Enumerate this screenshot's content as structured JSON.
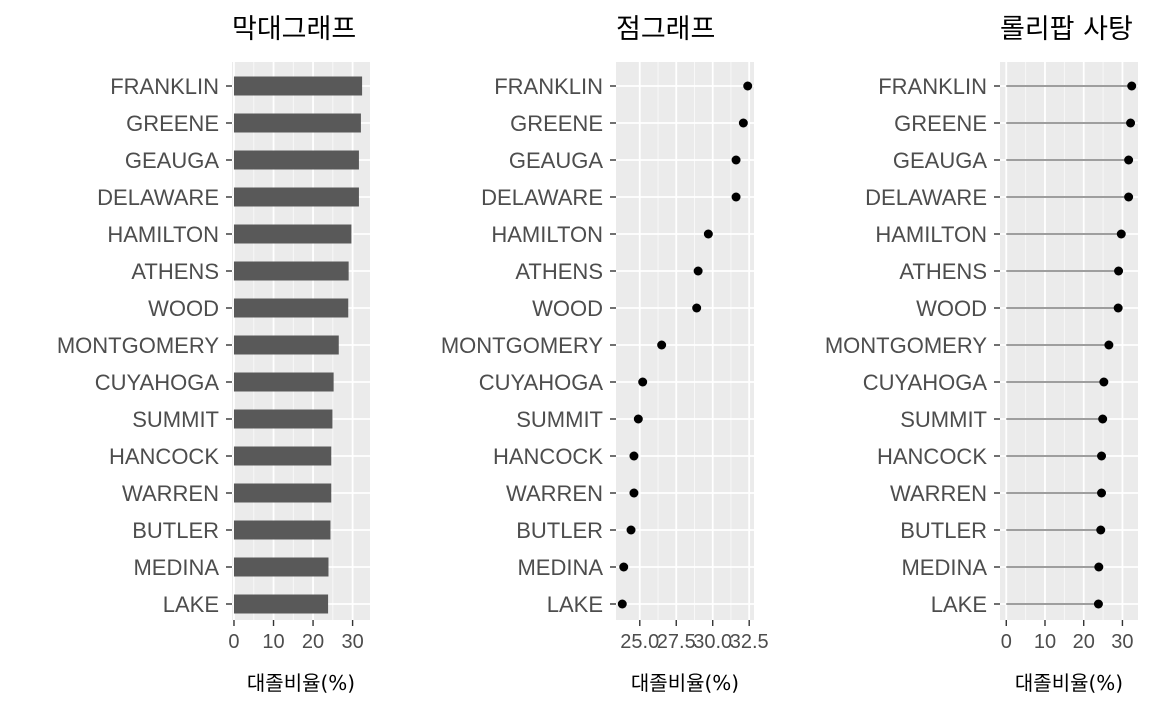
{
  "chart_data": {
    "categories": [
      "FRANKLIN",
      "GREENE",
      "GEAUGA",
      "DELAWARE",
      "HAMILTON",
      "ATHENS",
      "WOOD",
      "MONTGOMERY",
      "CUYAHOGA",
      "SUMMIT",
      "HANCOCK",
      "WARREN",
      "BUTLER",
      "MEDINA",
      "LAKE"
    ],
    "values": [
      32.4,
      32.1,
      31.6,
      31.6,
      29.7,
      29.0,
      28.9,
      26.5,
      25.2,
      24.9,
      24.6,
      24.6,
      24.4,
      23.9,
      23.8
    ],
    "xlabel": "대졸비율(%)",
    "panels": [
      {
        "type": "bar",
        "title": "막대그래프",
        "xlim": [
          -0.5,
          34.4
        ],
        "ticks": [
          0,
          10,
          20,
          30
        ],
        "tick_labels": [
          "0",
          "10",
          "20",
          "30"
        ]
      },
      {
        "type": "scatter",
        "title": "점그래프",
        "xlim": [
          23.37,
          32.83
        ],
        "ticks": [
          25.0,
          27.5,
          30.0,
          32.5
        ],
        "tick_labels": [
          "25.0",
          "27.5",
          "30.0",
          "32.5"
        ]
      },
      {
        "type": "lollipop",
        "title": "롤리팝 사탕",
        "xlim": [
          -1.62,
          34.02
        ],
        "ticks": [
          0,
          10,
          20,
          30
        ],
        "tick_labels": [
          "0",
          "10",
          "20",
          "30"
        ]
      }
    ],
    "grid": true
  },
  "colors": {
    "panel_background": "#ebebeb",
    "grid_major": "#ffffff",
    "bar_fill": "#595959",
    "point": "#000000",
    "stem": "#7f7f7f",
    "tick_text": "#4d4d4d"
  }
}
